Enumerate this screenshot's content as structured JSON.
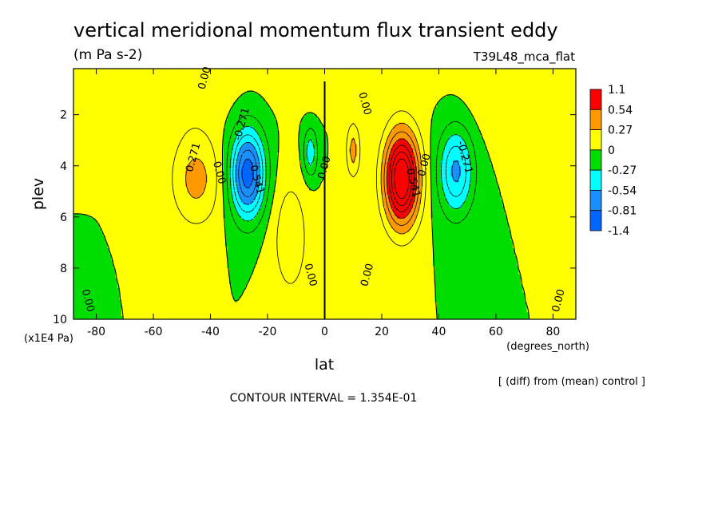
{
  "chart_data": {
    "type": "heatmap",
    "title": "vertical meridional momentum flux transient eddy",
    "units": "(m Pa s-2)",
    "experiment": "T39L48_mca_flat",
    "xlabel": "lat",
    "x_unit": "(degrees_north)",
    "ylabel": "plev",
    "y_unit": "(x1E4 Pa)",
    "xlim": [
      -88,
      88
    ],
    "ylim": [
      10,
      0.2
    ],
    "x_ticks": [
      -80,
      -60,
      -40,
      -20,
      0,
      20,
      40,
      60,
      80
    ],
    "x_tick_labels": [
      "-80",
      "-60",
      "-40",
      "-20",
      "0",
      "20",
      "40",
      "60",
      "80"
    ],
    "y_ticks": [
      2,
      4,
      6,
      8,
      10
    ],
    "y_tick_labels": [
      "2",
      "4",
      "6",
      "8",
      "10"
    ],
    "contour_interval_text": "CONTOUR INTERVAL = 1.354E-01",
    "comparison_note": "[ (diff) from (mean) control ]",
    "levels": [
      -1.4,
      -0.81,
      -0.54,
      -0.27,
      0,
      0.27,
      0.54,
      1.1
    ],
    "level_labels": [
      "1.1",
      "0.54",
      "0.27",
      "0",
      "-0.27",
      "-0.54",
      "-0.81",
      "-1.4"
    ],
    "colors": [
      "#0066ff",
      "#1a90ff",
      "#00ffff",
      "#00dd00",
      "#ffff00",
      "#ff9900",
      "#ff0000"
    ],
    "contour_labels": [
      {
        "text": "0.00",
        "lat": -84,
        "plev": 9.3
      },
      {
        "text": "0.271",
        "lat": -45,
        "plev": 3.7
      },
      {
        "text": "0.00",
        "lat": -38,
        "plev": 4.3
      },
      {
        "text": "-0.271",
        "lat": -28,
        "plev": 2.4
      },
      {
        "text": "-0.541",
        "lat": -25,
        "plev": 4.5
      },
      {
        "text": "0.00",
        "lat": 1,
        "plev": 4.1
      },
      {
        "text": "0.00",
        "lat": -6,
        "plev": 8.3
      },
      {
        "text": "0.00",
        "lat": 16,
        "plev": 8.3
      },
      {
        "text": "0.00",
        "lat": 13,
        "plev": 1.6
      },
      {
        "text": "0.00",
        "lat": -41,
        "plev": 0.6
      },
      {
        "text": "0.541",
        "lat": 30,
        "plev": 4.7
      },
      {
        "text": "0.00",
        "lat": 36,
        "plev": 4.0
      },
      {
        "text": "-0.271",
        "lat": 48,
        "plev": 3.7
      },
      {
        "text": "0.00",
        "lat": 83,
        "plev": 9.3
      }
    ]
  }
}
